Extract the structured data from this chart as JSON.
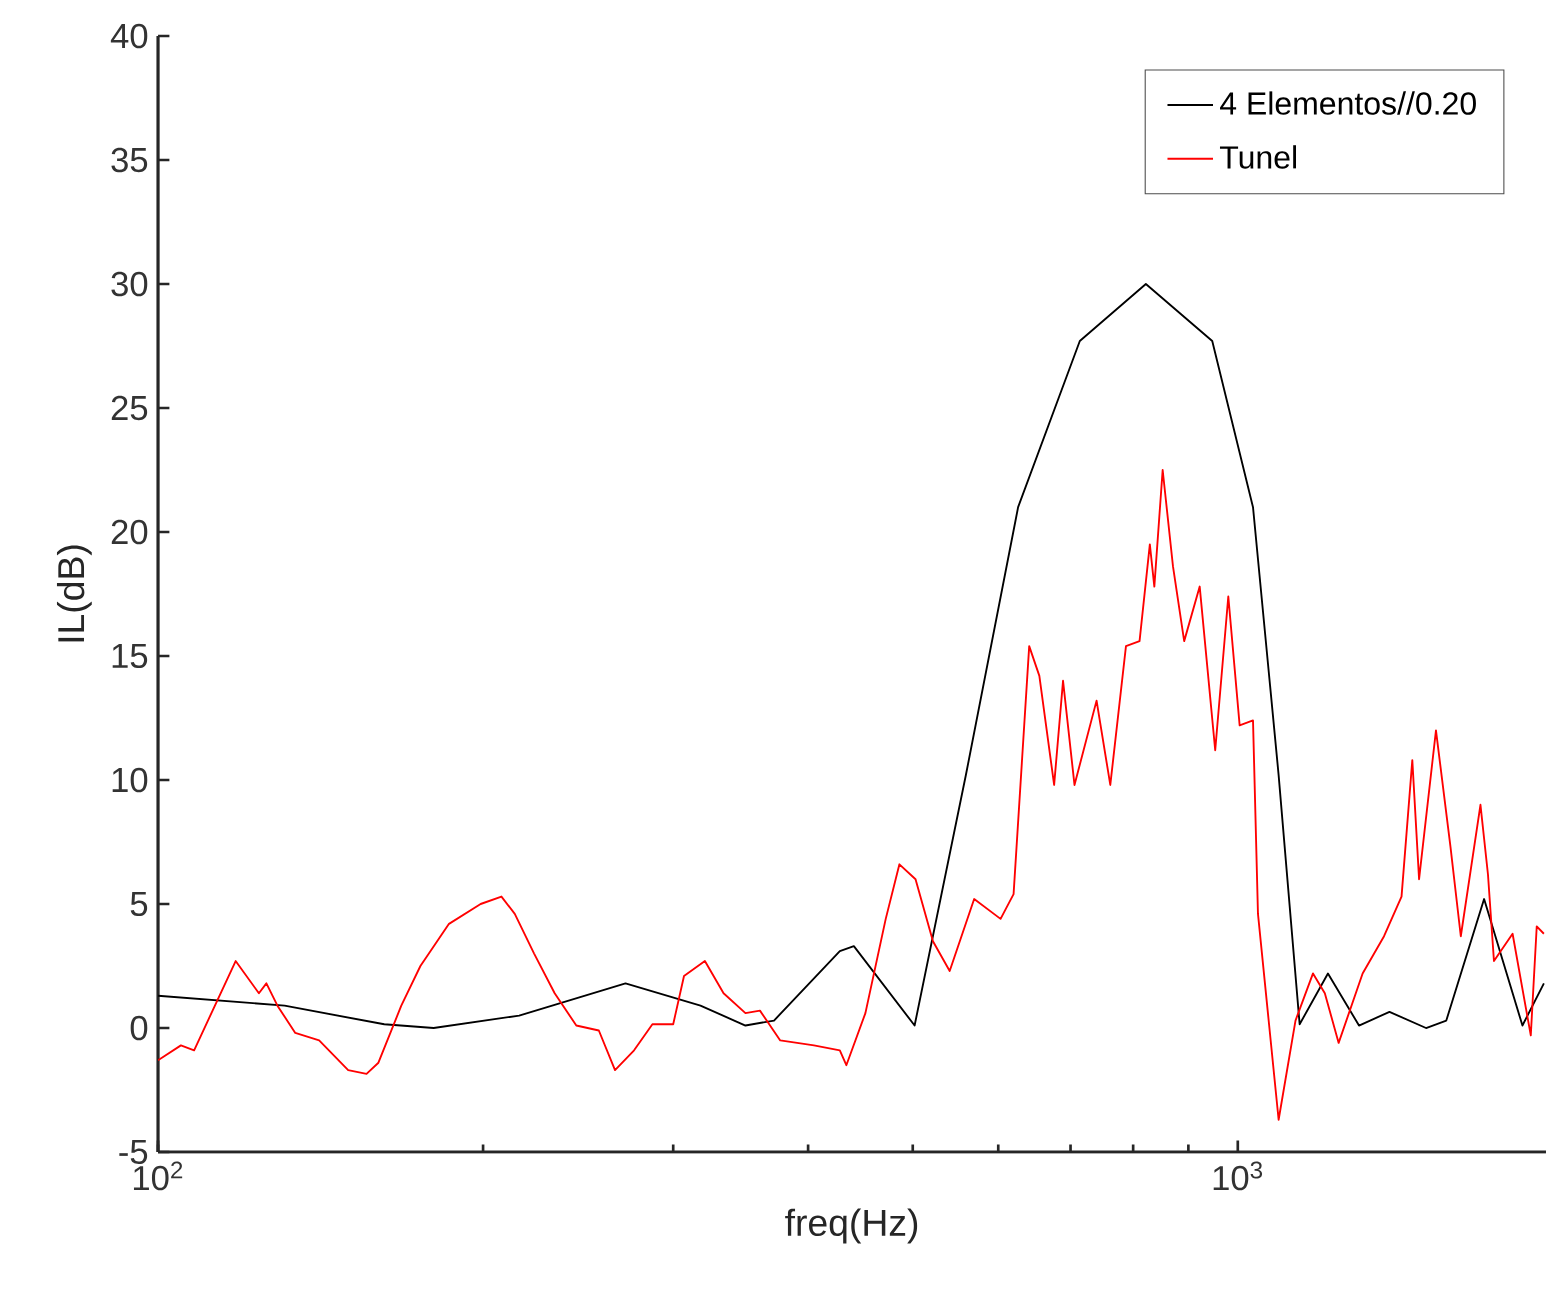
{
  "chart_data": {
    "type": "line",
    "xlabel": "freq(Hz)",
    "ylabel": "IL(dB)",
    "log": "x",
    "xlim": [
      100,
      1930
    ],
    "ylim": [
      -5,
      40
    ],
    "xticks": [
      {
        "value": 100,
        "label": "10$^{2}$"
      },
      {
        "value": 1000,
        "label": "10$^{3}$"
      }
    ],
    "yticks": [
      -5,
      0,
      5,
      10,
      15,
      20,
      25,
      30,
      35,
      40
    ],
    "grid": false,
    "legend": "top right",
    "marker": "none",
    "line_style": "solid",
    "series": [
      {
        "name": "4 Elementos//0.20",
        "color": "#000000",
        "x": [
          100,
          131,
          162,
          180,
          216,
          271,
          318,
          350,
          372,
          428,
          441,
          502,
          560,
          626,
          714,
          822,
          947,
          1033,
          1091,
          1141,
          1212,
          1295,
          1382,
          1494,
          1560,
          1691,
          1835,
          1921
        ],
        "values": [
          1.3,
          0.9,
          0.15,
          0,
          0.5,
          1.8,
          0.9,
          0.1,
          0.3,
          3.1,
          3.3,
          0.1,
          10.2,
          21,
          27.7,
          30,
          27.7,
          21,
          10.2,
          0.15,
          2.2,
          0.1,
          0.65,
          0,
          0.3,
          5.2,
          0.1,
          1.8
        ]
      },
      {
        "name": "Tunel",
        "color": "#ff0000",
        "x": [
          100,
          105,
          108,
          118,
          124,
          126,
          129,
          134,
          141,
          150,
          156,
          160,
          168,
          175,
          186,
          199,
          208,
          214,
          223,
          233,
          244,
          256,
          265,
          276,
          287,
          300,
          307,
          321,
          334,
          350,
          361,
          377,
          405,
          428,
          434,
          452,
          472,
          486,
          503,
          522,
          541,
          570,
          603,
          620,
          641,
          655,
          676,
          689,
          706,
          740,
          762,
          788,
          811,
          829,
          837,
          852,
          871,
          892,
          922,
          953,
          980,
          1004,
          1033,
          1044,
          1091,
          1131,
          1174,
          1204,
          1240,
          1305,
          1366,
          1418,
          1451,
          1472,
          1526,
          1574,
          1609,
          1678,
          1705,
          1727,
          1797,
          1868,
          1892,
          1921
        ],
        "values": [
          -1.3,
          -0.7,
          -0.9,
          2.7,
          1.4,
          1.8,
          0.9,
          -0.2,
          -0.5,
          -1.7,
          -1.85,
          -1.4,
          0.9,
          2.5,
          4.2,
          5.0,
          5.3,
          4.6,
          3.0,
          1.4,
          0.1,
          -0.1,
          -1.7,
          -0.9,
          0.15,
          0.15,
          2.1,
          2.7,
          1.4,
          0.6,
          0.7,
          -0.5,
          -0.7,
          -0.9,
          -1.5,
          0.6,
          4.4,
          6.6,
          6.0,
          3.5,
          2.3,
          5.2,
          4.4,
          5.4,
          15.4,
          14.2,
          9.8,
          14.0,
          9.8,
          13.2,
          9.8,
          15.4,
          15.6,
          19.5,
          17.8,
          22.5,
          18.6,
          15.6,
          17.8,
          11.2,
          17.4,
          12.2,
          12.4,
          4.6,
          -3.7,
          0.3,
          2.2,
          1.4,
          -0.6,
          2.2,
          3.7,
          5.3,
          10.8,
          6.0,
          12.0,
          7.3,
          3.7,
          9.0,
          6.2,
          2.7,
          3.8,
          -0.3,
          4.1,
          3.8
        ]
      }
    ]
  }
}
